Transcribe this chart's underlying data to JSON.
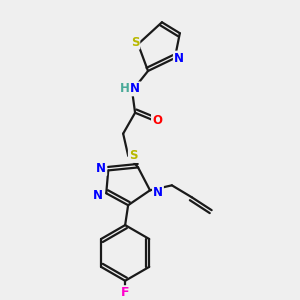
{
  "background_color": "#efefef",
  "atom_colors": {
    "S": "#b8b800",
    "N": "#0000ff",
    "O": "#ff0000",
    "F": "#ff00cc",
    "C": "#000000",
    "H": "#4aaa99"
  },
  "bond_color": "#1a1a1a",
  "bond_width": 1.6,
  "figsize": [
    3.0,
    3.0
  ],
  "dpi": 100
}
